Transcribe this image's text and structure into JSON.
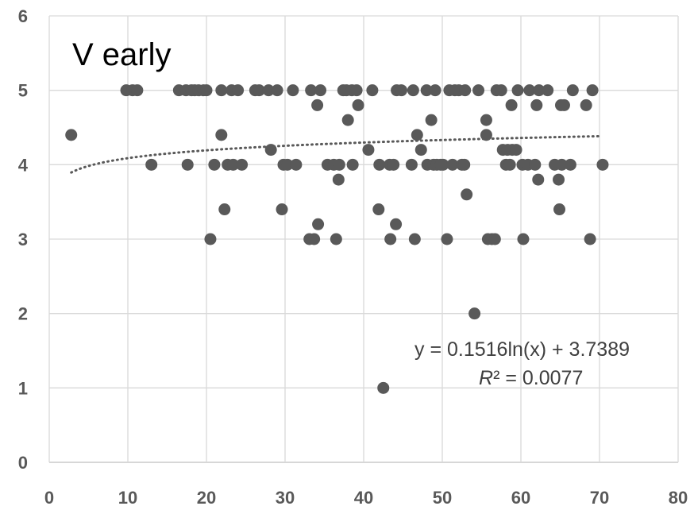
{
  "chart_data": {
    "type": "scatter",
    "title": "V early",
    "xlabel": "",
    "ylabel": "",
    "xlim": [
      0,
      80
    ],
    "ylim": [
      0,
      6
    ],
    "x_ticks": [
      0,
      10,
      20,
      30,
      40,
      50,
      60,
      70,
      80
    ],
    "y_ticks": [
      0,
      1,
      2,
      3,
      4,
      5,
      6
    ],
    "grid": true,
    "legend": "none",
    "marker_color": "#595959",
    "trendline": {
      "type": "logarithmic",
      "a": 0.1516,
      "b": 3.7389,
      "x_range": [
        2.8,
        70
      ],
      "color": "#595959",
      "style": "dotted",
      "equation_text": "y = 0.1516ln(x) + 3.7389",
      "r2_label": "R",
      "r2_value_text": "² = 0.0077"
    },
    "points": [
      [
        2.8,
        4.4
      ],
      [
        9.8,
        5
      ],
      [
        10.6,
        5
      ],
      [
        11.2,
        5
      ],
      [
        13.0,
        4
      ],
      [
        16.5,
        5
      ],
      [
        17.4,
        5
      ],
      [
        17.6,
        4
      ],
      [
        18.1,
        5
      ],
      [
        18.5,
        5
      ],
      [
        19.0,
        5
      ],
      [
        19.6,
        5
      ],
      [
        20.0,
        5
      ],
      [
        20.5,
        3
      ],
      [
        21.0,
        4
      ],
      [
        21.9,
        5
      ],
      [
        21.9,
        4.4
      ],
      [
        22.3,
        3.4
      ],
      [
        22.7,
        4
      ],
      [
        23.2,
        5
      ],
      [
        23.4,
        4
      ],
      [
        24.0,
        5
      ],
      [
        24.5,
        4
      ],
      [
        26.2,
        5
      ],
      [
        26.7,
        5
      ],
      [
        27.9,
        5
      ],
      [
        28.2,
        4.2
      ],
      [
        29.0,
        5
      ],
      [
        29.6,
        3.4
      ],
      [
        29.8,
        4
      ],
      [
        30.3,
        4
      ],
      [
        31.0,
        5
      ],
      [
        31.4,
        4
      ],
      [
        33.1,
        3
      ],
      [
        33.3,
        5
      ],
      [
        33.7,
        3
      ],
      [
        34.1,
        4.8
      ],
      [
        34.2,
        3.2
      ],
      [
        34.5,
        5
      ],
      [
        35.4,
        4
      ],
      [
        36.2,
        4
      ],
      [
        36.5,
        3
      ],
      [
        36.8,
        3.8
      ],
      [
        36.9,
        4
      ],
      [
        37.4,
        5
      ],
      [
        37.8,
        5
      ],
      [
        38.0,
        4.6
      ],
      [
        38.5,
        5
      ],
      [
        38.6,
        4
      ],
      [
        39.1,
        5
      ],
      [
        39.3,
        4.8
      ],
      [
        40.6,
        4.2
      ],
      [
        41.1,
        5
      ],
      [
        41.9,
        3.4
      ],
      [
        42.0,
        4
      ],
      [
        42.5,
        1
      ],
      [
        43.3,
        4
      ],
      [
        43.4,
        3
      ],
      [
        43.8,
        4
      ],
      [
        44.1,
        3.2
      ],
      [
        44.2,
        5
      ],
      [
        44.8,
        5
      ],
      [
        46.1,
        4
      ],
      [
        46.3,
        5
      ],
      [
        46.5,
        3
      ],
      [
        46.8,
        4.4
      ],
      [
        47.3,
        4.2
      ],
      [
        48.0,
        5
      ],
      [
        48.1,
        4
      ],
      [
        48.6,
        4.6
      ],
      [
        48.9,
        4
      ],
      [
        49.1,
        5
      ],
      [
        49.3,
        4
      ],
      [
        49.8,
        4
      ],
      [
        50.1,
        4
      ],
      [
        50.6,
        3
      ],
      [
        50.9,
        5
      ],
      [
        51.3,
        4
      ],
      [
        51.6,
        5
      ],
      [
        52.1,
        5
      ],
      [
        52.5,
        4
      ],
      [
        52.8,
        4
      ],
      [
        52.9,
        5
      ],
      [
        53.1,
        3.6
      ],
      [
        54.1,
        2
      ],
      [
        54.6,
        5
      ],
      [
        55.6,
        4.6
      ],
      [
        55.6,
        4.4
      ],
      [
        55.8,
        3
      ],
      [
        56.3,
        3
      ],
      [
        56.7,
        3
      ],
      [
        56.9,
        5
      ],
      [
        57.5,
        5
      ],
      [
        57.7,
        4.2
      ],
      [
        58.1,
        4
      ],
      [
        58.3,
        4.2
      ],
      [
        58.6,
        4
      ],
      [
        58.8,
        4.8
      ],
      [
        58.9,
        4.2
      ],
      [
        59.4,
        4.2
      ],
      [
        59.6,
        5
      ],
      [
        60.2,
        4
      ],
      [
        60.3,
        3
      ],
      [
        60.9,
        4
      ],
      [
        61.1,
        5
      ],
      [
        61.8,
        4
      ],
      [
        62.0,
        4.8
      ],
      [
        62.2,
        3.8
      ],
      [
        62.3,
        5
      ],
      [
        63.4,
        5
      ],
      [
        64.3,
        4
      ],
      [
        64.8,
        3.8
      ],
      [
        64.9,
        3.4
      ],
      [
        65.1,
        4.8
      ],
      [
        65.2,
        4
      ],
      [
        65.5,
        4.8
      ],
      [
        66.3,
        4
      ],
      [
        66.6,
        5
      ],
      [
        68.3,
        4.8
      ],
      [
        68.8,
        3
      ],
      [
        69.1,
        5
      ],
      [
        70.4,
        4
      ]
    ]
  }
}
